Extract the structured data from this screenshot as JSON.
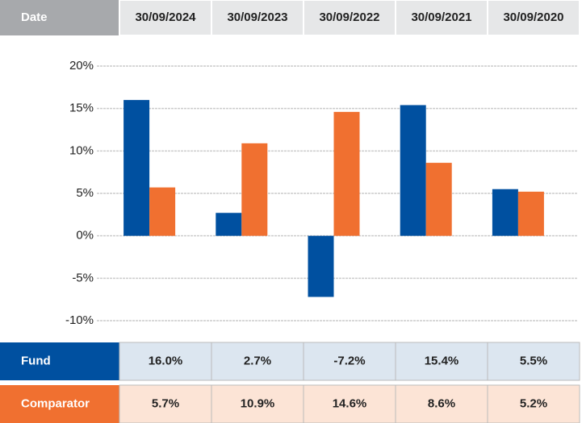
{
  "chart_data": {
    "type": "bar",
    "category_header": "Date",
    "categories": [
      "30/09/2024",
      "30/09/2023",
      "30/09/2022",
      "30/09/2021",
      "30/09/2020"
    ],
    "series": [
      {
        "name": "Fund",
        "color": "#0050a0",
        "values": [
          16.0,
          2.7,
          -7.2,
          15.4,
          5.5
        ],
        "value_labels": [
          "16.0%",
          "2.7%",
          "-7.2%",
          "15.4%",
          "5.5%"
        ]
      },
      {
        "name": "Comparator",
        "color": "#f07030",
        "values": [
          5.7,
          10.9,
          14.6,
          8.6,
          5.2
        ],
        "value_labels": [
          "5.7%",
          "10.9%",
          "14.6%",
          "8.6%",
          "5.2%"
        ]
      }
    ],
    "ylim": [
      -10,
      20
    ],
    "yticks": [
      {
        "value": -10,
        "label": "-10%"
      },
      {
        "value": -5,
        "label": "-5%"
      },
      {
        "value": 0,
        "label": "0%"
      },
      {
        "value": 5,
        "label": "5%"
      },
      {
        "value": 10,
        "label": "10%"
      },
      {
        "value": 15,
        "label": "15%"
      },
      {
        "value": 20,
        "label": "20%"
      }
    ],
    "grid": true
  }
}
